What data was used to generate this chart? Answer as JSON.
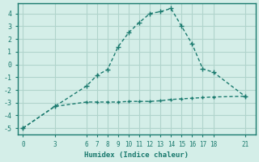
{
  "line1_x": [
    0,
    3,
    6,
    7,
    8,
    9,
    10,
    11,
    12,
    13,
    14,
    15,
    16,
    17,
    18,
    21
  ],
  "line1_y": [
    -5.0,
    -3.3,
    -1.7,
    -0.85,
    -0.4,
    1.4,
    2.5,
    3.3,
    4.0,
    4.15,
    4.4,
    3.0,
    1.6,
    -0.35,
    -0.6,
    -2.5
  ],
  "line2_x": [
    0,
    3,
    6,
    7,
    8,
    9,
    10,
    11,
    12,
    13,
    14,
    15,
    16,
    17,
    18,
    21
  ],
  "line2_y": [
    -5.0,
    -3.3,
    -2.95,
    -2.95,
    -2.95,
    -2.95,
    -2.9,
    -2.9,
    -2.9,
    -2.85,
    -2.75,
    -2.7,
    -2.65,
    -2.6,
    -2.55,
    -2.5
  ],
  "line_color": "#1a7a6e",
  "bg_color": "#d4eee8",
  "grid_color": "#b0d4cc",
  "axis_color": "#1a7a6e",
  "xlabel": "Humidex (Indice chaleur)",
  "xticks": [
    0,
    3,
    6,
    7,
    8,
    9,
    10,
    11,
    12,
    13,
    14,
    15,
    16,
    17,
    18,
    21
  ],
  "yticks": [
    -5,
    -4,
    -3,
    -2,
    -1,
    0,
    1,
    2,
    3,
    4
  ],
  "ylim": [
    -5.5,
    4.8
  ],
  "xlim": [
    -0.5,
    22
  ]
}
